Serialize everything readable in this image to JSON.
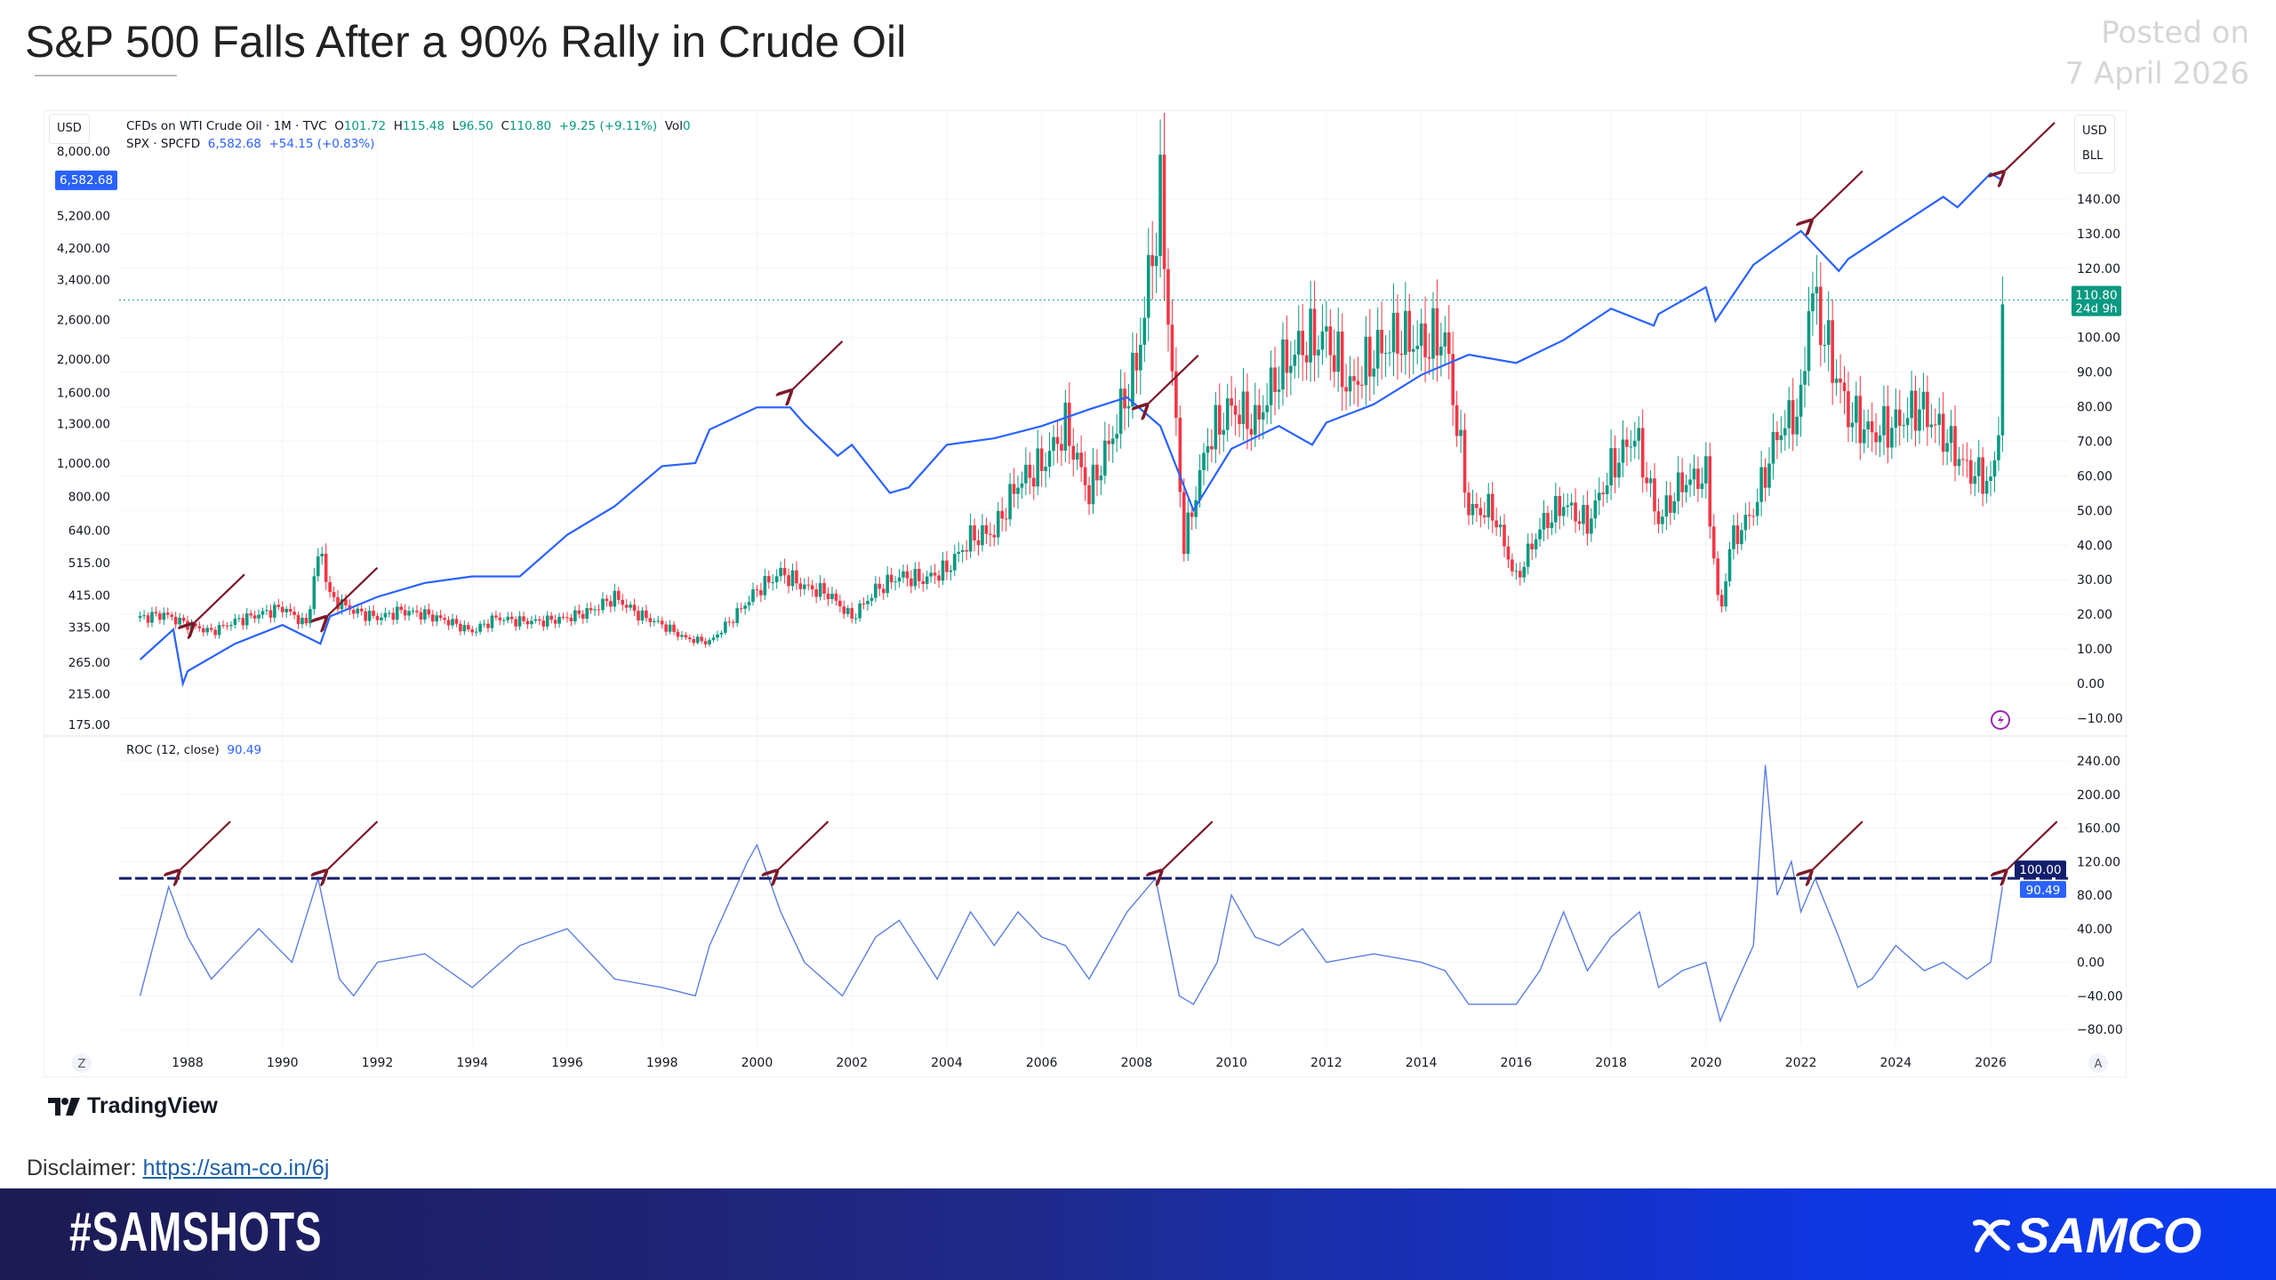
{
  "header": {
    "title": "S&P 500 Falls After a 90% Rally in Crude Oil",
    "posted_label": "Posted on",
    "posted_date": "7 April 2026"
  },
  "legend": {
    "oil_name": "CFDs on WTI Crude Oil · 1M · TVC",
    "o_label": "O",
    "o": "101.72",
    "h_label": "H",
    "h": "115.48",
    "l_label": "L",
    "l": "96.50",
    "c_label": "C",
    "c": "110.80",
    "change": "+9.25 (+9.11%)",
    "vol_label": "Vol",
    "vol": "0",
    "spx_name": "SPX · SPCFD",
    "spx_value": "6,582.68",
    "spx_change": "+54.15 (+0.83%)",
    "roc_name": "ROC (12, close)",
    "roc_value": "90.49"
  },
  "axes": {
    "left_unit": "USD",
    "right_unit": "USD",
    "right_unit2": "BLL",
    "spx_price_tag": "6,582.68",
    "oil_price_tag": "110.80",
    "oil_countdown": "24d 9h",
    "roc_level_tag": "100.00",
    "roc_value_tag": "90.49",
    "left_ticks": [
      "8,000.00",
      "5,200.00",
      "4,200.00",
      "3,400.00",
      "2,600.00",
      "2,000.00",
      "1,600.00",
      "1,300.00",
      "1,000.00",
      "800.00",
      "640.00",
      "515.00",
      "415.00",
      "335.00",
      "265.00",
      "215.00",
      "175.00"
    ],
    "right_ticks": [
      "140.00",
      "130.00",
      "120.00",
      "110.00",
      "100.00",
      "90.00",
      "80.00",
      "70.00",
      "60.00",
      "50.00",
      "40.00",
      "30.00",
      "20.00",
      "10.00",
      "0.00",
      "−10.00"
    ],
    "roc_ticks": [
      "240.00",
      "200.00",
      "160.00",
      "120.00",
      "80.00",
      "40.00",
      "0.00",
      "−40.00",
      "−80.00"
    ],
    "x_ticks": [
      "1988",
      "1990",
      "1992",
      "1994",
      "1996",
      "1998",
      "2000",
      "2002",
      "2004",
      "2006",
      "2008",
      "2010",
      "2012",
      "2014",
      "2016",
      "2018",
      "2020",
      "2022",
      "2024",
      "2026"
    ],
    "log_button": "Z",
    "auto_button": "A"
  },
  "colors": {
    "up": "#089981",
    "down": "#f23645",
    "spx": "#2962ff",
    "roc": "#5b7fe0",
    "roc_level": "#131f6b",
    "arrow": "#7b1a2a"
  },
  "chart_data": [
    {
      "type": "candlestick",
      "series_name": "CFDs on WTI Crude Oil",
      "axis": "right",
      "ylim": [
        -10,
        145
      ],
      "x_unit": "year",
      "x": [
        1987,
        1987.5,
        1988,
        1988.5,
        1989,
        1989.5,
        1990,
        1990.5,
        1990.8,
        1991,
        1991.5,
        1992,
        1992.5,
        1993,
        1993.5,
        1994,
        1994.5,
        1995,
        1995.5,
        1996,
        1996.5,
        1997,
        1997.5,
        1998,
        1998.5,
        1999,
        1999.5,
        2000,
        2000.5,
        2001,
        2001.5,
        2002,
        2002.5,
        2003,
        2003.5,
        2004,
        2004.5,
        2005,
        2005.5,
        2006,
        2006.5,
        2007,
        2007.5,
        2008,
        2008.5,
        2009,
        2009.5,
        2010,
        2010.5,
        2011,
        2011.5,
        2012,
        2012.5,
        2013,
        2013.5,
        2014,
        2014.5,
        2015,
        2015.5,
        2016,
        2016.5,
        2017,
        2017.5,
        2018,
        2018.5,
        2019,
        2019.5,
        2020,
        2020.3,
        2020.5,
        2021,
        2021.5,
        2022,
        2022.2,
        2022.5,
        2023,
        2023.5,
        2024,
        2024.5,
        2025,
        2025.5,
        2026,
        2026.15,
        2026.25
      ],
      "close": [
        19,
        20,
        17,
        15,
        18,
        20,
        22,
        17,
        40,
        25,
        21,
        19,
        21,
        20,
        18,
        15,
        19,
        18,
        18,
        19,
        21,
        25,
        20,
        17,
        13,
        12,
        19,
        27,
        32,
        28,
        26,
        19,
        27,
        31,
        30,
        33,
        42,
        44,
        58,
        63,
        74,
        55,
        72,
        92,
        140,
        40,
        70,
        80,
        75,
        90,
        98,
        100,
        85,
        95,
        100,
        98,
        100,
        50,
        50,
        30,
        45,
        52,
        46,
        62,
        72,
        47,
        58,
        60,
        18,
        40,
        50,
        72,
        80,
        115,
        100,
        78,
        72,
        75,
        80,
        72,
        62,
        58,
        68,
        110.8
      ]
    },
    {
      "type": "line",
      "series_name": "SPX",
      "axis": "left",
      "scale": "log",
      "ylim": [
        175,
        8000
      ],
      "x": [
        1987,
        1987.7,
        1987.9,
        1988,
        1989,
        1990,
        1990.8,
        1991,
        1992,
        1993,
        1994,
        1995,
        1996,
        1997,
        1998,
        1998.7,
        1999,
        2000,
        2000.7,
        2001,
        2001.7,
        2002,
        2002.8,
        2003.2,
        2004,
        2005,
        2006,
        2007,
        2007.8,
        2008.5,
        2009.2,
        2010,
        2011,
        2011.7,
        2012,
        2013,
        2014,
        2015,
        2016,
        2017,
        2018,
        2018.9,
        2019,
        2020,
        2020.2,
        2021,
        2022,
        2022.8,
        2023,
        2024,
        2025,
        2025.3,
        2026,
        2026.25
      ],
      "y": [
        270,
        330,
        230,
        250,
        300,
        340,
        300,
        360,
        410,
        450,
        470,
        470,
        620,
        750,
        980,
        1000,
        1250,
        1450,
        1450,
        1300,
        1050,
        1130,
        820,
        850,
        1130,
        1180,
        1280,
        1430,
        1550,
        1280,
        730,
        1100,
        1280,
        1130,
        1310,
        1480,
        1800,
        2060,
        1950,
        2270,
        2800,
        2500,
        2700,
        3230,
        2580,
        3750,
        4700,
        3600,
        3900,
        4800,
        5900,
        5500,
        6900,
        6582.68
      ]
    },
    {
      "type": "line",
      "series_name": "ROC (12, close)",
      "pane": "lower",
      "ylim": [
        -100,
        270
      ],
      "level_line": 100,
      "x": [
        1987,
        1987.6,
        1988,
        1988.5,
        1989.5,
        1990.2,
        1990.75,
        1991.2,
        1991.5,
        1992,
        1993,
        1994,
        1995,
        1996,
        1997,
        1998,
        1998.7,
        1999,
        1999.8,
        2000,
        2000.5,
        2001,
        2001.8,
        2002.5,
        2003,
        2003.8,
        2004.5,
        2005,
        2005.5,
        2006,
        2006.5,
        2007,
        2007.8,
        2008.4,
        2008.9,
        2009.2,
        2009.7,
        2010,
        2010.5,
        2011,
        2011.5,
        2012,
        2013,
        2014,
        2014.5,
        2015,
        2016,
        2016.5,
        2017,
        2017.5,
        2018,
        2018.6,
        2019,
        2019.5,
        2020,
        2020.3,
        2020.6,
        2021,
        2021.25,
        2021.5,
        2021.8,
        2022,
        2022.3,
        2022.8,
        2023.2,
        2023.5,
        2024,
        2024.6,
        2025,
        2025.5,
        2026,
        2026.25
      ],
      "y": [
        -40,
        90,
        30,
        -20,
        40,
        0,
        100,
        -20,
        -40,
        0,
        10,
        -30,
        20,
        40,
        -20,
        -30,
        -40,
        20,
        120,
        140,
        60,
        0,
        -40,
        30,
        50,
        -20,
        60,
        20,
        60,
        30,
        20,
        -20,
        60,
        100,
        -40,
        -50,
        0,
        80,
        30,
        20,
        40,
        0,
        10,
        0,
        -10,
        -50,
        -50,
        -10,
        60,
        -10,
        30,
        60,
        -30,
        -10,
        0,
        -70,
        -30,
        20,
        235,
        80,
        120,
        60,
        100,
        30,
        -30,
        -20,
        20,
        -10,
        0,
        -20,
        0,
        90.49
      ]
    },
    {
      "type": "annotations",
      "shape": "arrow",
      "main_pane": [
        {
          "x": 1988,
          "spx": 330
        },
        {
          "x": 1990.8,
          "spx": 345
        },
        {
          "x": 2000.6,
          "spx": 1560
        },
        {
          "x": 2008.1,
          "spx": 1420
        },
        {
          "x": 2022.1,
          "spx": 4850
        },
        {
          "x": 2026.15,
          "spx": 6700
        }
      ],
      "roc_pane": [
        {
          "x": 1987.7,
          "roc": 100
        },
        {
          "x": 1990.8,
          "roc": 100
        },
        {
          "x": 2000.3,
          "roc": 100
        },
        {
          "x": 2008.4,
          "roc": 100
        },
        {
          "x": 2022.1,
          "roc": 100
        },
        {
          "x": 2026.2,
          "roc": 100
        }
      ]
    }
  ],
  "footer": {
    "tradingview": "TradingView",
    "disclaimer_label": "Disclaimer:",
    "disclaimer_link": "https://sam-co.in/6j",
    "hashtag": "#SAMSHOTS",
    "brand": "SAMCO"
  }
}
